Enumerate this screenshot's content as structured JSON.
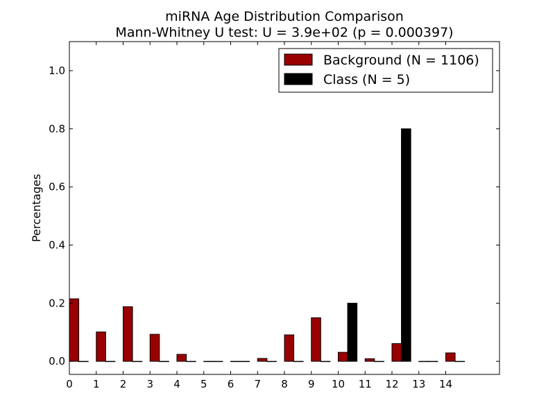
{
  "chart_data": {
    "type": "bar",
    "title": "miRNA Age Distribution Comparison",
    "subtitle": "Mann-Whitney U test: U = 3.9e+02 (p = 0.000397)",
    "xlabel": "",
    "ylabel": "Percentages",
    "categories": [
      0,
      1,
      2,
      3,
      4,
      5,
      6,
      7,
      8,
      9,
      10,
      11,
      12,
      13,
      14
    ],
    "xlim": [
      0,
      16
    ],
    "ylim": [
      -0.045,
      1.1
    ],
    "x_ticks": [
      "0",
      "1",
      "2",
      "3",
      "4",
      "5",
      "6",
      "7",
      "8",
      "9",
      "10",
      "11",
      "12",
      "13",
      "14"
    ],
    "y_ticks": [
      "0.0",
      "0.2",
      "0.4",
      "0.6",
      "0.8",
      "1.0"
    ],
    "grid": false,
    "legend_position": "top-right",
    "series": [
      {
        "name": "Background (N = 1106)",
        "color": "#990000",
        "values": [
          0.215,
          0.101,
          0.188,
          0.093,
          0.024,
          0.0,
          0.0,
          0.01,
          0.091,
          0.15,
          0.031,
          0.009,
          0.061,
          0.0,
          0.029
        ]
      },
      {
        "name": "Class (N = 5)",
        "color": "#000000",
        "values": [
          0.0,
          0.0,
          0.0,
          0.0,
          0.0,
          0.0,
          0.0,
          0.0,
          0.0,
          0.0,
          0.2,
          0.0,
          0.8,
          0.0,
          0.0
        ]
      }
    ]
  }
}
